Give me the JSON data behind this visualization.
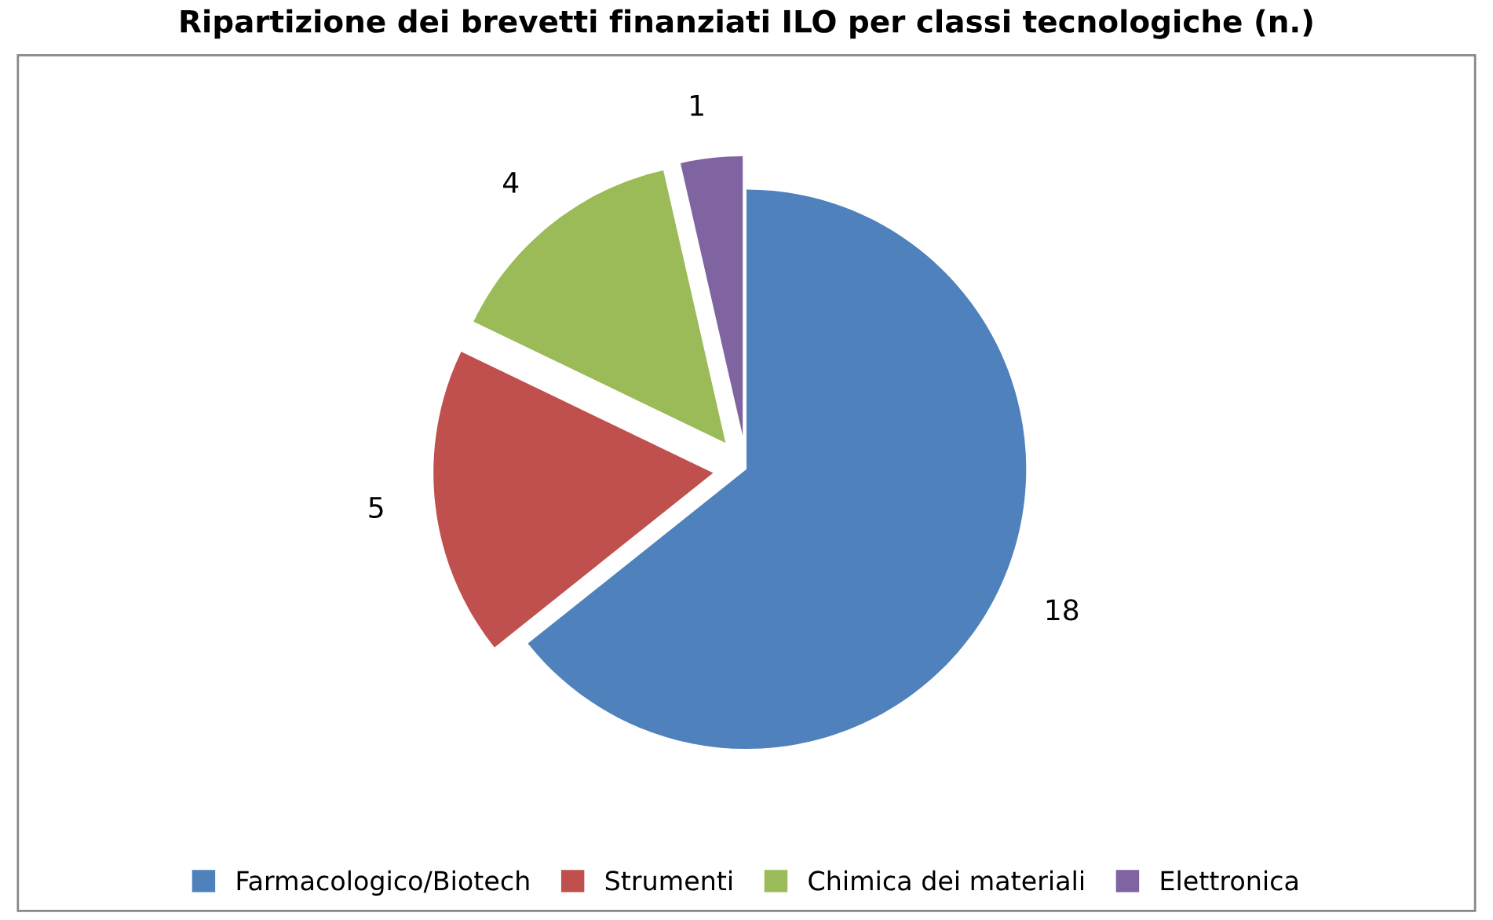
{
  "chart_data": {
    "type": "pie",
    "title": "Ripartizione dei brevetti finanziati ILO per classi tecnologiche (n.)",
    "categories": [
      "Farmacologico/Biotech",
      "Strumenti",
      "Chimica dei materiali",
      "Elettronica"
    ],
    "values": [
      18,
      5,
      4,
      1
    ],
    "colors": [
      "#4f81bd",
      "#c0504d",
      "#9bbb59",
      "#8064a2"
    ],
    "data_labels": true,
    "legend": "bottom"
  }
}
